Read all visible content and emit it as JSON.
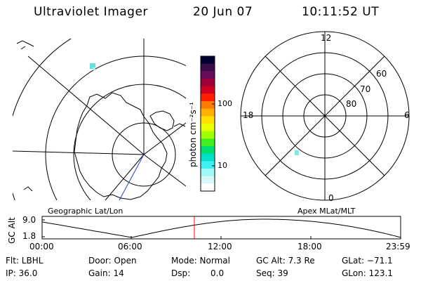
{
  "header": {
    "instrument": "Ultraviolet Imager",
    "date": "20 Jun 07",
    "time": "10:11:52 UT"
  },
  "colorbar": {
    "unit_label": "photon cm⁻²s⁻¹",
    "tick_100": "100",
    "tick_10": "10",
    "colors": [
      "#000033",
      "#3a0a4a",
      "#6a0a5a",
      "#a0003a",
      "#d00020",
      "#ff2000",
      "#ff7a00",
      "#ffb000",
      "#ffe000",
      "#e8ff00",
      "#a0ff00",
      "#40f020",
      "#00e070",
      "#00e0c8",
      "#40f0f0",
      "#a0f8f8",
      "#d8f8f8",
      "#ffffff"
    ]
  },
  "geo_map": {
    "label": "Geographic Lat/Lon"
  },
  "mlt_dial": {
    "label": "Apex MLat/MLT",
    "mlt_top": "12",
    "mlt_left": "18",
    "mlt_right": "6",
    "mlt_bottom": "0",
    "lat_60": "60",
    "lat_70": "70",
    "lat_80": "80"
  },
  "timeline": {
    "axis_label": "GC Alt",
    "ytick_top": "9.0",
    "ytick_bottom": "1.8",
    "xticks": [
      "00:00",
      "06:00",
      "12:00",
      "18:00",
      "23:59"
    ],
    "current_marker_color": "#ff0000"
  },
  "status": {
    "flt": "Flt: LBHL",
    "ip": "IP: 36.0",
    "door": "Door: Open",
    "gain": "Gain: 14",
    "mode": "Mode: Normal",
    "dsp_label": "Dsp:",
    "dsp_value": "0.0",
    "gc_alt": "GC Alt: 7.3 Re",
    "seq": "Seq: 39",
    "glat": "GLat: −71.1",
    "glon": "GLon: 123.1"
  }
}
